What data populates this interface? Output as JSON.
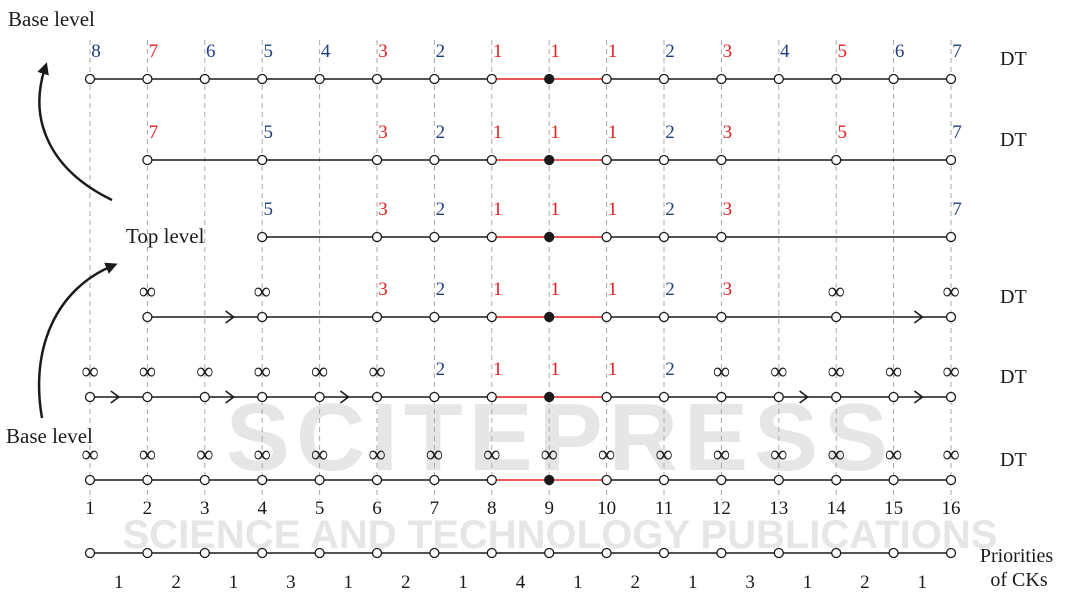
{
  "colors": {
    "blue": "#1f3f7f",
    "red": "#e02020",
    "black": "#1a1a1a",
    "grid": "#aaaaaa",
    "watermark": "#e6e6e6"
  },
  "labels": {
    "base_level_top": "Base level",
    "top_level": "Top level",
    "base_level_left": "Base level",
    "dt": "DT",
    "priorities_line1": "Priorities",
    "priorities_line2": "of CKs",
    "infinity": "∞"
  },
  "watermark": {
    "main": "SCITEPRESS",
    "sub": "SCIENCE AND TECHNOLOGY PUBLICATIONS"
  },
  "positions": [
    "1",
    "2",
    "3",
    "4",
    "5",
    "6",
    "7",
    "8",
    "9",
    "10",
    "11",
    "12",
    "13",
    "14",
    "15",
    "16"
  ],
  "ck_priorities": [
    "1",
    "2",
    "1",
    "3",
    "1",
    "2",
    "1",
    "4",
    "1",
    "2",
    "1",
    "3",
    "1",
    "2",
    "1"
  ],
  "levels": [
    {
      "id": "level-1",
      "dt": true,
      "nodes": [
        1,
        2,
        3,
        4,
        5,
        6,
        7,
        8,
        9,
        10,
        11,
        12,
        13,
        14,
        15,
        16
      ],
      "filled": 9,
      "arrows": [],
      "values": [
        {
          "pos": 1,
          "text": "8",
          "color": "blue"
        },
        {
          "pos": 2,
          "text": "7",
          "color": "red"
        },
        {
          "pos": 3,
          "text": "6",
          "color": "blue"
        },
        {
          "pos": 4,
          "text": "5",
          "color": "blue"
        },
        {
          "pos": 5,
          "text": "4",
          "color": "blue"
        },
        {
          "pos": 6,
          "text": "3",
          "color": "red"
        },
        {
          "pos": 7,
          "text": "2",
          "color": "blue"
        },
        {
          "pos": 8,
          "text": "1",
          "color": "red"
        },
        {
          "pos": 9,
          "text": "1",
          "color": "red"
        },
        {
          "pos": 10,
          "text": "1",
          "color": "red"
        },
        {
          "pos": 11,
          "text": "2",
          "color": "blue"
        },
        {
          "pos": 12,
          "text": "3",
          "color": "red"
        },
        {
          "pos": 13,
          "text": "4",
          "color": "blue"
        },
        {
          "pos": 14,
          "text": "5",
          "color": "red"
        },
        {
          "pos": 15,
          "text": "6",
          "color": "blue"
        },
        {
          "pos": 16,
          "text": "7",
          "color": "blue"
        }
      ]
    },
    {
      "id": "level-2",
      "dt": true,
      "nodes": [
        2,
        4,
        6,
        7,
        8,
        9,
        10,
        11,
        12,
        14,
        16
      ],
      "filled": 9,
      "arrows": [],
      "values": [
        {
          "pos": 2,
          "text": "7",
          "color": "red"
        },
        {
          "pos": 4,
          "text": "5",
          "color": "blue"
        },
        {
          "pos": 6,
          "text": "3",
          "color": "red"
        },
        {
          "pos": 7,
          "text": "2",
          "color": "blue"
        },
        {
          "pos": 8,
          "text": "1",
          "color": "red"
        },
        {
          "pos": 9,
          "text": "1",
          "color": "red"
        },
        {
          "pos": 10,
          "text": "1",
          "color": "red"
        },
        {
          "pos": 11,
          "text": "2",
          "color": "blue"
        },
        {
          "pos": 12,
          "text": "3",
          "color": "red"
        },
        {
          "pos": 14,
          "text": "5",
          "color": "red"
        },
        {
          "pos": 16,
          "text": "7",
          "color": "blue"
        }
      ]
    },
    {
      "id": "level-3",
      "dt": false,
      "nodes": [
        4,
        6,
        7,
        8,
        9,
        10,
        11,
        12,
        16
      ],
      "filled": 9,
      "arrows": [],
      "values": [
        {
          "pos": 4,
          "text": "5",
          "color": "blue"
        },
        {
          "pos": 6,
          "text": "3",
          "color": "red"
        },
        {
          "pos": 7,
          "text": "2",
          "color": "blue"
        },
        {
          "pos": 8,
          "text": "1",
          "color": "red"
        },
        {
          "pos": 9,
          "text": "1",
          "color": "red"
        },
        {
          "pos": 10,
          "text": "1",
          "color": "red"
        },
        {
          "pos": 11,
          "text": "2",
          "color": "blue"
        },
        {
          "pos": 12,
          "text": "3",
          "color": "red"
        },
        {
          "pos": 16,
          "text": "7",
          "color": "blue"
        }
      ]
    },
    {
      "id": "level-4",
      "dt": true,
      "nodes": [
        2,
        4,
        6,
        7,
        8,
        9,
        10,
        11,
        12,
        14,
        16
      ],
      "filled": 9,
      "arrows": [
        3,
        15
      ],
      "values": [
        {
          "pos": 2,
          "text": "∞",
          "color": "black"
        },
        {
          "pos": 4,
          "text": "∞",
          "color": "black"
        },
        {
          "pos": 6,
          "text": "3",
          "color": "red"
        },
        {
          "pos": 7,
          "text": "2",
          "color": "blue"
        },
        {
          "pos": 8,
          "text": "1",
          "color": "red"
        },
        {
          "pos": 9,
          "text": "1",
          "color": "red"
        },
        {
          "pos": 10,
          "text": "1",
          "color": "red"
        },
        {
          "pos": 11,
          "text": "2",
          "color": "blue"
        },
        {
          "pos": 12,
          "text": "3",
          "color": "red"
        },
        {
          "pos": 14,
          "text": "∞",
          "color": "black"
        },
        {
          "pos": 16,
          "text": "∞",
          "color": "black"
        }
      ]
    },
    {
      "id": "level-5",
      "dt": true,
      "nodes": [
        1,
        2,
        3,
        4,
        5,
        6,
        7,
        8,
        9,
        10,
        11,
        12,
        13,
        14,
        15,
        16
      ],
      "filled": 9,
      "arrows": [
        1,
        3,
        5,
        13,
        15
      ],
      "values": [
        {
          "pos": 1,
          "text": "∞",
          "color": "black"
        },
        {
          "pos": 2,
          "text": "∞",
          "color": "black"
        },
        {
          "pos": 3,
          "text": "∞",
          "color": "black"
        },
        {
          "pos": 4,
          "text": "∞",
          "color": "black"
        },
        {
          "pos": 5,
          "text": "∞",
          "color": "black"
        },
        {
          "pos": 6,
          "text": "∞",
          "color": "black"
        },
        {
          "pos": 7,
          "text": "2",
          "color": "blue"
        },
        {
          "pos": 8,
          "text": "1",
          "color": "red"
        },
        {
          "pos": 9,
          "text": "1",
          "color": "red"
        },
        {
          "pos": 10,
          "text": "1",
          "color": "red"
        },
        {
          "pos": 11,
          "text": "2",
          "color": "blue"
        },
        {
          "pos": 12,
          "text": "∞",
          "color": "black"
        },
        {
          "pos": 13,
          "text": "∞",
          "color": "black"
        },
        {
          "pos": 14,
          "text": "∞",
          "color": "black"
        },
        {
          "pos": 15,
          "text": "∞",
          "color": "black"
        },
        {
          "pos": 16,
          "text": "∞",
          "color": "black"
        }
      ]
    },
    {
      "id": "level-6",
      "dt": true,
      "nodes": [
        1,
        2,
        3,
        4,
        5,
        6,
        7,
        8,
        9,
        10,
        11,
        12,
        13,
        14,
        15,
        16
      ],
      "filled": 9,
      "arrows": [],
      "values": [
        {
          "pos": 1,
          "text": "∞",
          "color": "black"
        },
        {
          "pos": 2,
          "text": "∞",
          "color": "black"
        },
        {
          "pos": 3,
          "text": "∞",
          "color": "black"
        },
        {
          "pos": 4,
          "text": "∞",
          "color": "black"
        },
        {
          "pos": 5,
          "text": "∞",
          "color": "black"
        },
        {
          "pos": 6,
          "text": "∞",
          "color": "black"
        },
        {
          "pos": 7,
          "text": "∞",
          "color": "black"
        },
        {
          "pos": 8,
          "text": "∞",
          "color": "black"
        },
        {
          "pos": 9,
          "text": "∞",
          "color": "black"
        },
        {
          "pos": 10,
          "text": "∞",
          "color": "black"
        },
        {
          "pos": 11,
          "text": "∞",
          "color": "black"
        },
        {
          "pos": 12,
          "text": "∞",
          "color": "black"
        },
        {
          "pos": 13,
          "text": "∞",
          "color": "black"
        },
        {
          "pos": 14,
          "text": "∞",
          "color": "black"
        },
        {
          "pos": 15,
          "text": "∞",
          "color": "black"
        },
        {
          "pos": 16,
          "text": "∞",
          "color": "black"
        }
      ]
    }
  ]
}
